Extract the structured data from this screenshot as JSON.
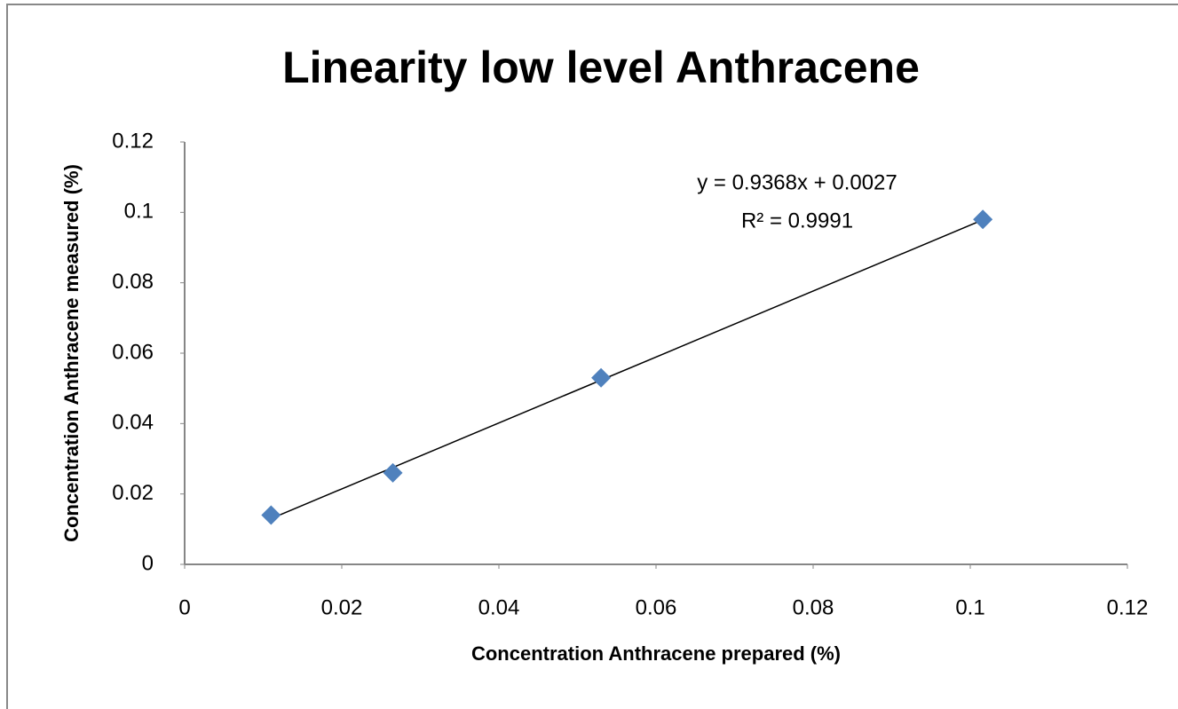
{
  "chart_data": {
    "type": "scatter",
    "title": "Linearity low level Anthracene",
    "x_label": "Concentration Anthracene prepared (%)",
    "y_label": "Concentration Anthracene measured (%)",
    "series": [
      {
        "name": "Anthracene",
        "color": "#4f81bd",
        "x": [
          0.011,
          0.0265,
          0.053,
          0.1016
        ],
        "values": [
          0.014,
          0.026,
          0.053,
          0.098
        ]
      }
    ],
    "trendline": {
      "slope": 0.9368,
      "intercept": 0.0027,
      "color": "#000000",
      "equation": "y = 0.9368x + 0.0027",
      "r2": "R² = 0.9991"
    },
    "xlim": [
      0,
      0.12
    ],
    "xticks": [
      0,
      0.02,
      0.04,
      0.06,
      0.08,
      0.1,
      0.12
    ],
    "ylim": [
      0,
      0.12
    ],
    "yticks": [
      0,
      0.02,
      0.04,
      0.06,
      0.08,
      0.1,
      0.12
    ],
    "grid": false
  }
}
